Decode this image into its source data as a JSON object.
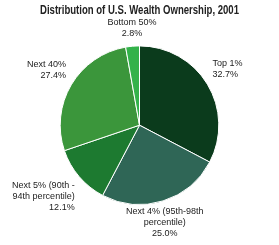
{
  "chart_data": {
    "type": "pie",
    "title": "Distribution of U.S. Wealth Ownership, 2001",
    "categories": [
      "Top 1%",
      "Next 4% (95th-98th percentile)",
      "Next 5% (90th - 94th percentile)",
      "Next 40%",
      "Bottom 50%"
    ],
    "values": [
      32.7,
      25.0,
      12.1,
      27.4,
      2.8
    ],
    "value_labels": [
      "32.7%",
      "25.0%",
      "12.1%",
      "27.4%",
      "2.8%"
    ],
    "colors": [
      "#0b3b1c",
      "#2f6656",
      "#1d7a30",
      "#3b963b",
      "#33b24a"
    ],
    "data_labels": true
  }
}
